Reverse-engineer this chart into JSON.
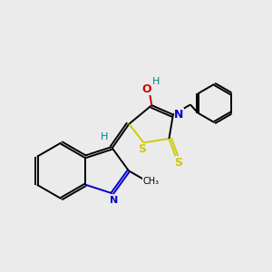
{
  "bg_color": "#ebebeb",
  "atom_colors": {
    "C": "#000000",
    "N": "#0000cc",
    "O": "#cc0000",
    "S": "#cccc00",
    "H": "#008080"
  },
  "figsize": [
    3.0,
    3.0
  ],
  "dpi": 100,
  "xlim": [
    0,
    10
  ],
  "ylim": [
    0,
    10
  ]
}
